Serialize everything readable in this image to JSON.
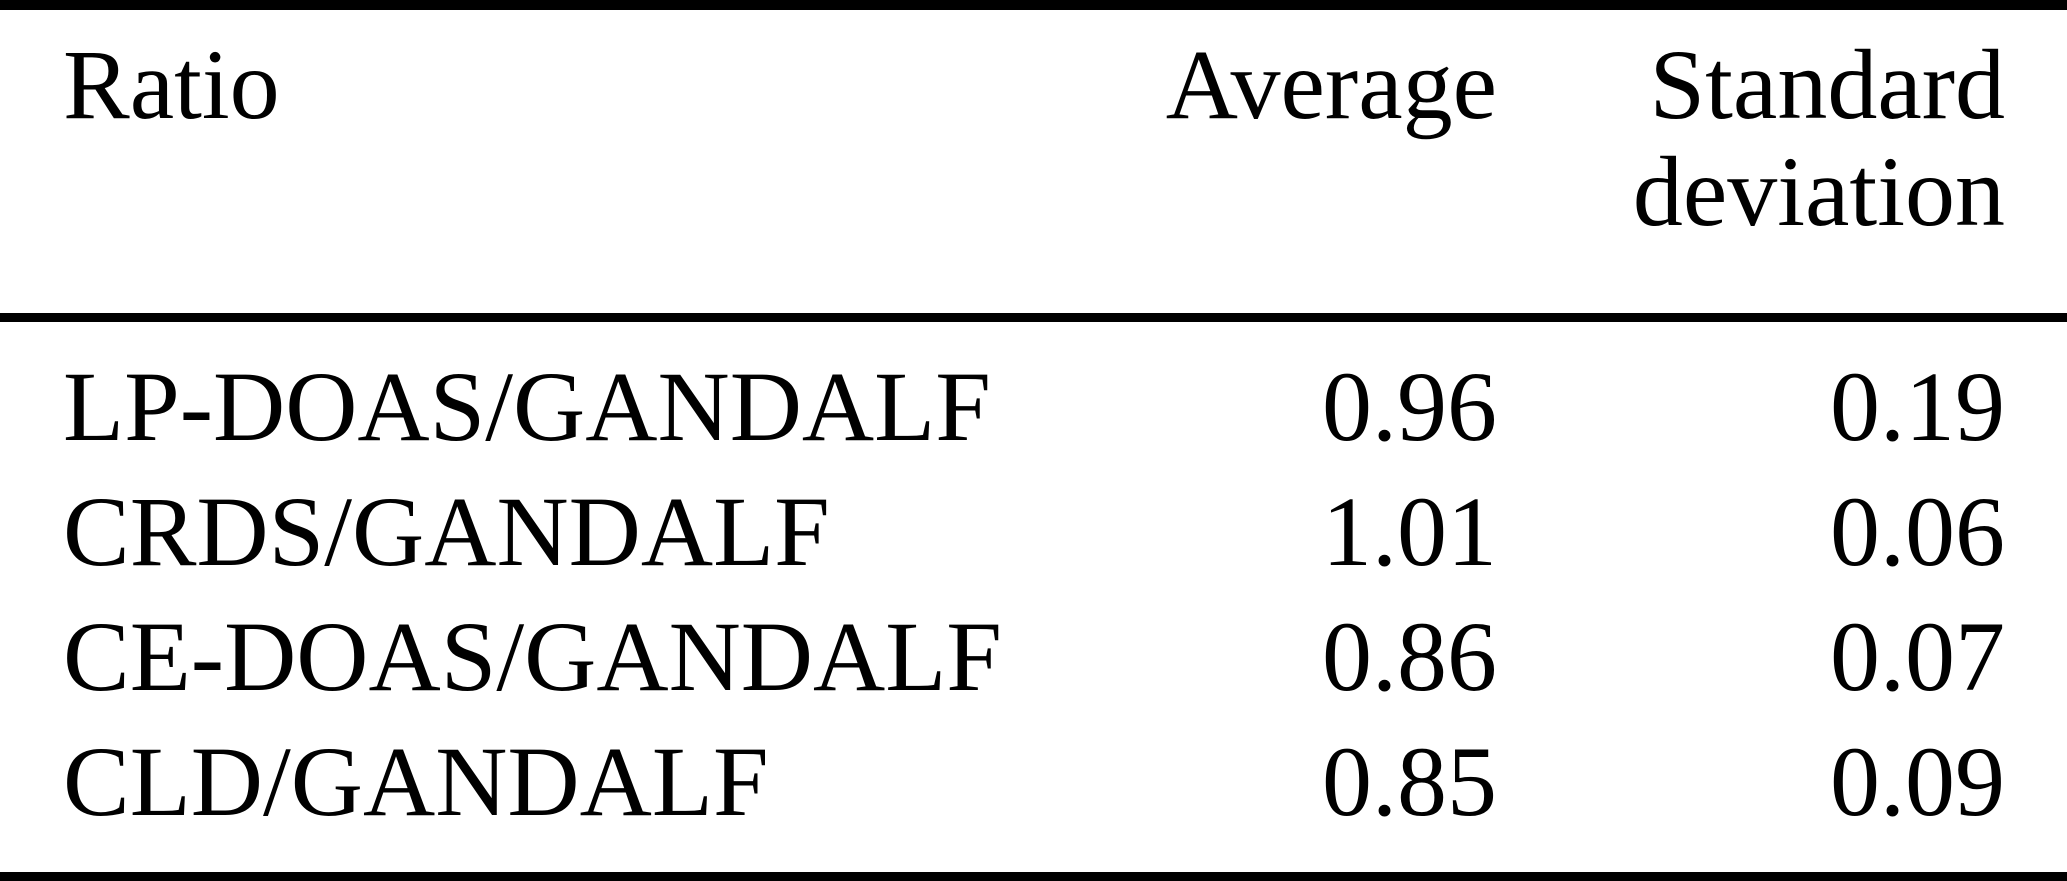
{
  "table": {
    "headers": {
      "ratio": "Ratio",
      "average": "Average",
      "std": "Standard deviation"
    },
    "rows": [
      {
        "ratio": "LP-DOAS/GANDALF",
        "average": "0.96",
        "std": "0.19"
      },
      {
        "ratio": "CRDS/GANDALF",
        "average": "1.01",
        "std": "0.06"
      },
      {
        "ratio": "CE-DOAS/GANDALF",
        "average": "0.86",
        "std": "0.07"
      },
      {
        "ratio": "CLD/GANDALF",
        "average": "0.85",
        "std": "0.09"
      }
    ]
  },
  "chart_data": {
    "type": "table",
    "columns": [
      "Ratio",
      "Average",
      "Standard deviation"
    ],
    "rows": [
      [
        "LP-DOAS/GANDALF",
        0.96,
        0.19
      ],
      [
        "CRDS/GANDALF",
        1.01,
        0.06
      ],
      [
        "CE-DOAS/GANDALF",
        0.86,
        0.07
      ],
      [
        "CLD/GANDALF",
        0.85,
        0.09
      ]
    ]
  },
  "colors": {
    "text": "#000000",
    "background": "#ffffff",
    "rule": "#000000"
  }
}
